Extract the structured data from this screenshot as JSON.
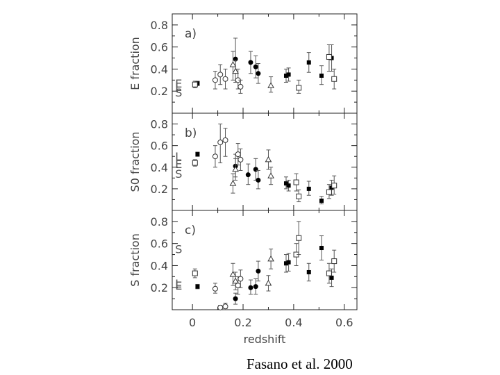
{
  "credit": "Fasano et al. 2000",
  "chart_data": [
    {
      "type": "scatter",
      "panel_label": "a)",
      "ylabel": "E fraction",
      "xlabel": "",
      "ylim": [
        0.0,
        0.9
      ],
      "xlim": [
        -0.08,
        0.65
      ],
      "y_ticks": [
        "0.2",
        "0.4",
        "0.6",
        "0.8"
      ],
      "reference_labels": [
        {
          "text": "E",
          "y": 0.27
        },
        {
          "text": "L",
          "y": 0.24
        },
        {
          "text": "S",
          "y": 0.19
        }
      ],
      "series": [
        {
          "marker": "filled-circle",
          "points": [
            {
              "x": 0.17,
              "y": 0.49,
              "lo": 0.37,
              "hi": 0.68
            },
            {
              "x": 0.23,
              "y": 0.46,
              "lo": 0.36,
              "hi": 0.56
            },
            {
              "x": 0.25,
              "y": 0.42,
              "lo": 0.32,
              "hi": 0.52
            },
            {
              "x": 0.26,
              "y": 0.36,
              "lo": 0.27,
              "hi": 0.45
            }
          ]
        },
        {
          "marker": "open-circle",
          "points": [
            {
              "x": 0.09,
              "y": 0.3,
              "lo": 0.22,
              "hi": 0.38
            },
            {
              "x": 0.11,
              "y": 0.35,
              "lo": 0.26,
              "hi": 0.44
            },
            {
              "x": 0.13,
              "y": 0.31,
              "lo": 0.22,
              "hi": 0.4
            },
            {
              "x": 0.18,
              "y": 0.3,
              "lo": 0.22,
              "hi": 0.4
            },
            {
              "x": 0.19,
              "y": 0.24,
              "lo": 0.18,
              "hi": 0.3
            }
          ]
        },
        {
          "marker": "open-triangle",
          "points": [
            {
              "x": 0.16,
              "y": 0.44,
              "lo": 0.3,
              "hi": 0.56
            },
            {
              "x": 0.17,
              "y": 0.38,
              "lo": 0.28,
              "hi": 0.48
            },
            {
              "x": 0.31,
              "y": 0.25,
              "lo": 0.19,
              "hi": 0.33
            }
          ]
        },
        {
          "marker": "filled-square",
          "points": [
            {
              "x": 0.02,
              "y": 0.27,
              "lo": 0.25,
              "hi": 0.29
            },
            {
              "x": 0.37,
              "y": 0.34,
              "lo": 0.28,
              "hi": 0.4
            },
            {
              "x": 0.38,
              "y": 0.35,
              "lo": 0.29,
              "hi": 0.41
            },
            {
              "x": 0.46,
              "y": 0.46,
              "lo": 0.37,
              "hi": 0.55
            },
            {
              "x": 0.51,
              "y": 0.34,
              "lo": 0.26,
              "hi": 0.43
            },
            {
              "x": 0.55,
              "y": 0.5,
              "lo": 0.38,
              "hi": 0.62
            }
          ]
        },
        {
          "marker": "open-square",
          "points": [
            {
              "x": 0.01,
              "y": 0.26,
              "lo": 0.23,
              "hi": 0.29
            },
            {
              "x": 0.42,
              "y": 0.23,
              "lo": 0.18,
              "hi": 0.3
            },
            {
              "x": 0.54,
              "y": 0.51,
              "lo": 0.38,
              "hi": 0.62
            },
            {
              "x": 0.56,
              "y": 0.31,
              "lo": 0.22,
              "hi": 0.4
            }
          ]
        }
      ]
    },
    {
      "type": "scatter",
      "panel_label": "b)",
      "ylabel": "S0 fraction",
      "xlabel": "",
      "ylim": [
        0.0,
        0.9
      ],
      "xlim": [
        -0.08,
        0.65
      ],
      "y_ticks": [
        "0.2",
        "0.4",
        "0.6",
        "0.8"
      ],
      "reference_labels": [
        {
          "text": "L",
          "y": 0.5
        },
        {
          "text": "E",
          "y": 0.43
        },
        {
          "text": "S",
          "y": 0.34
        }
      ],
      "series": [
        {
          "marker": "filled-circle",
          "points": [
            {
              "x": 0.17,
              "y": 0.41,
              "lo": 0.31,
              "hi": 0.52
            },
            {
              "x": 0.22,
              "y": 0.33,
              "lo": 0.24,
              "hi": 0.43
            },
            {
              "x": 0.25,
              "y": 0.38,
              "lo": 0.28,
              "hi": 0.48
            },
            {
              "x": 0.26,
              "y": 0.28,
              "lo": 0.2,
              "hi": 0.37
            }
          ]
        },
        {
          "marker": "open-circle",
          "points": [
            {
              "x": 0.09,
              "y": 0.5,
              "lo": 0.4,
              "hi": 0.6
            },
            {
              "x": 0.11,
              "y": 0.63,
              "lo": 0.44,
              "hi": 0.8
            },
            {
              "x": 0.13,
              "y": 0.65,
              "lo": 0.5,
              "hi": 0.76
            },
            {
              "x": 0.18,
              "y": 0.52,
              "lo": 0.42,
              "hi": 0.62
            },
            {
              "x": 0.19,
              "y": 0.47,
              "lo": 0.37,
              "hi": 0.57
            }
          ]
        },
        {
          "marker": "open-triangle",
          "points": [
            {
              "x": 0.16,
              "y": 0.25,
              "lo": 0.16,
              "hi": 0.34
            },
            {
              "x": 0.17,
              "y": 0.38,
              "lo": 0.28,
              "hi": 0.48
            },
            {
              "x": 0.3,
              "y": 0.47,
              "lo": 0.38,
              "hi": 0.56
            },
            {
              "x": 0.31,
              "y": 0.32,
              "lo": 0.24,
              "hi": 0.4
            }
          ]
        },
        {
          "marker": "filled-square",
          "points": [
            {
              "x": 0.02,
              "y": 0.52,
              "lo": 0.5,
              "hi": 0.54
            },
            {
              "x": 0.37,
              "y": 0.25,
              "lo": 0.2,
              "hi": 0.31
            },
            {
              "x": 0.38,
              "y": 0.23,
              "lo": 0.18,
              "hi": 0.28
            },
            {
              "x": 0.46,
              "y": 0.2,
              "lo": 0.14,
              "hi": 0.27
            },
            {
              "x": 0.51,
              "y": 0.09,
              "lo": 0.06,
              "hi": 0.13
            },
            {
              "x": 0.55,
              "y": 0.21,
              "lo": 0.14,
              "hi": 0.28
            }
          ]
        },
        {
          "marker": "open-square",
          "points": [
            {
              "x": 0.01,
              "y": 0.44,
              "lo": 0.41,
              "hi": 0.47
            },
            {
              "x": 0.41,
              "y": 0.26,
              "lo": 0.18,
              "hi": 0.34
            },
            {
              "x": 0.42,
              "y": 0.13,
              "lo": 0.08,
              "hi": 0.19
            },
            {
              "x": 0.54,
              "y": 0.17,
              "lo": 0.11,
              "hi": 0.24
            },
            {
              "x": 0.56,
              "y": 0.23,
              "lo": 0.15,
              "hi": 0.32
            }
          ]
        }
      ]
    },
    {
      "type": "scatter",
      "panel_label": "c)",
      "ylabel": "S fraction",
      "xlabel": "redshift",
      "ylim": [
        0.0,
        0.9
      ],
      "xlim": [
        -0.08,
        0.65
      ],
      "x_ticks": [
        "0",
        "0.2",
        "0.4",
        "0.6"
      ],
      "y_ticks": [
        "0.2",
        "0.4",
        "0.6",
        "0.8"
      ],
      "reference_labels": [
        {
          "text": "S",
          "y": 0.55
        },
        {
          "text": "L",
          "y": 0.24
        },
        {
          "text": "E",
          "y": 0.22
        }
      ],
      "series": [
        {
          "marker": "filled-circle",
          "points": [
            {
              "x": 0.17,
              "y": 0.1,
              "lo": 0.05,
              "hi": 0.15
            },
            {
              "x": 0.23,
              "y": 0.2,
              "lo": 0.14,
              "hi": 0.27
            },
            {
              "x": 0.25,
              "y": 0.21,
              "lo": 0.14,
              "hi": 0.28
            },
            {
              "x": 0.26,
              "y": 0.35,
              "lo": 0.26,
              "hi": 0.44
            }
          ]
        },
        {
          "marker": "open-circle",
          "points": [
            {
              "x": 0.09,
              "y": 0.19,
              "lo": 0.15,
              "hi": 0.24
            },
            {
              "x": 0.11,
              "y": 0.02,
              "lo": 0.01,
              "hi": 0.04
            },
            {
              "x": 0.13,
              "y": 0.03,
              "lo": 0.01,
              "hi": 0.06
            },
            {
              "x": 0.18,
              "y": 0.22,
              "lo": 0.14,
              "hi": 0.3
            },
            {
              "x": 0.19,
              "y": 0.28,
              "lo": 0.2,
              "hi": 0.36
            }
          ]
        },
        {
          "marker": "open-triangle",
          "points": [
            {
              "x": 0.16,
              "y": 0.32,
              "lo": 0.22,
              "hi": 0.42
            },
            {
              "x": 0.17,
              "y": 0.26,
              "lo": 0.18,
              "hi": 0.34
            },
            {
              "x": 0.3,
              "y": 0.24,
              "lo": 0.17,
              "hi": 0.31
            },
            {
              "x": 0.31,
              "y": 0.46,
              "lo": 0.37,
              "hi": 0.55
            }
          ]
        },
        {
          "marker": "filled-square",
          "points": [
            {
              "x": 0.02,
              "y": 0.21,
              "lo": 0.19,
              "hi": 0.23
            },
            {
              "x": 0.37,
              "y": 0.42,
              "lo": 0.34,
              "hi": 0.5
            },
            {
              "x": 0.38,
              "y": 0.43,
              "lo": 0.35,
              "hi": 0.51
            },
            {
              "x": 0.46,
              "y": 0.34,
              "lo": 0.26,
              "hi": 0.42
            },
            {
              "x": 0.51,
              "y": 0.56,
              "lo": 0.45,
              "hi": 0.67
            },
            {
              "x": 0.55,
              "y": 0.29,
              "lo": 0.21,
              "hi": 0.37
            }
          ]
        },
        {
          "marker": "open-square",
          "points": [
            {
              "x": 0.01,
              "y": 0.33,
              "lo": 0.29,
              "hi": 0.37
            },
            {
              "x": 0.41,
              "y": 0.5,
              "lo": 0.4,
              "hi": 0.6
            },
            {
              "x": 0.42,
              "y": 0.65,
              "lo": 0.5,
              "hi": 0.8
            },
            {
              "x": 0.54,
              "y": 0.33,
              "lo": 0.24,
              "hi": 0.42
            },
            {
              "x": 0.56,
              "y": 0.44,
              "lo": 0.34,
              "hi": 0.54
            }
          ]
        }
      ]
    }
  ]
}
